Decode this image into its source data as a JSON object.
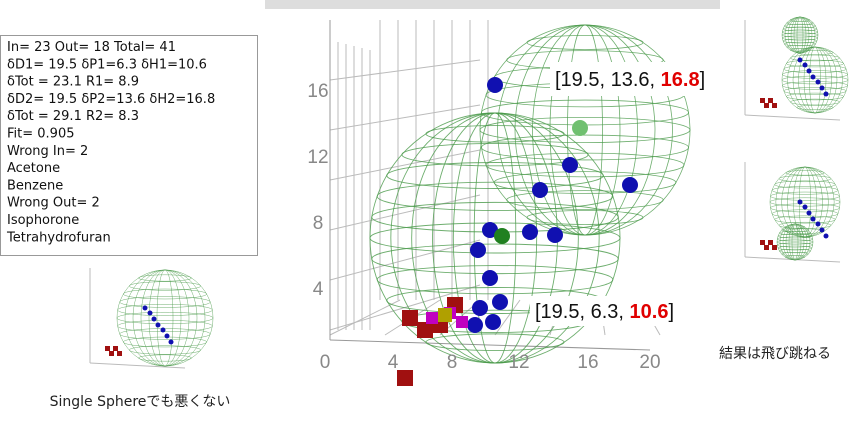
{
  "info_box": {
    "lines": [
      "In= 23 Out= 18 Total= 41",
      "δD1= 19.5 δP1=6.3 δH1=10.6",
      "δTot = 23.1 R1= 8.9",
      "δD2= 19.5 δP2=13.6 δH2=16.8",
      "δTot = 29.1 R2= 8.3",
      "Fit= 0.905",
      "Wrong In= 2",
      "Acetone",
      "Benzene",
      "Wrong Out= 2",
      "Isophorone",
      "Tetrahydrofuran"
    ]
  },
  "main_plot": {
    "z_axis_labels": [
      "16",
      "12",
      "8",
      "4"
    ],
    "x_axis_labels": [
      "0",
      "4",
      "8",
      "12",
      "16",
      "20"
    ],
    "annotations": [
      {
        "prefix": "[19.5, 13.6, ",
        "highlight": "16.8",
        "suffix": "]"
      },
      {
        "prefix": "[19.5, 6.3, ",
        "highlight": "10.6",
        "suffix": "]"
      }
    ]
  },
  "captions": {
    "left": "Single Sphereでも悪くない",
    "right": "結果は飛び跳ねる"
  }
}
